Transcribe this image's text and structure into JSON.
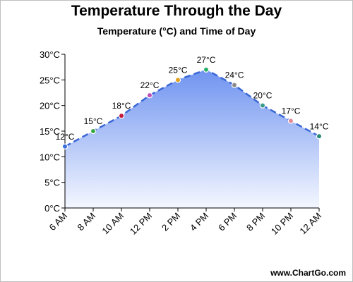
{
  "chart_data": {
    "type": "area",
    "title": "Temperature Through the Day",
    "subtitle": "Temperature (°C) and Time of Day",
    "xlabel": "",
    "ylabel": "",
    "categories": [
      "6 AM",
      "8 AM",
      "10 AM",
      "12 PM",
      "2 PM",
      "4 PM",
      "6 PM",
      "8 PM",
      "10 PM",
      "12 AM"
    ],
    "values": [
      12,
      15,
      18,
      22,
      25,
      27,
      24,
      20,
      17,
      14
    ],
    "data_labels": [
      "12°C",
      "15°C",
      "18°C",
      "22°C",
      "25°C",
      "27°C",
      "24°C",
      "20°C",
      "17°C",
      "14°C"
    ],
    "ylim": [
      0,
      30
    ],
    "yticks": [
      0,
      5,
      10,
      15,
      20,
      25,
      30
    ],
    "ytick_labels": [
      "0°C",
      "5°C",
      "10°C",
      "15°C",
      "20°C",
      "25°C",
      "30°C"
    ],
    "grid": false,
    "legend": "none",
    "line_style": "dashed",
    "colors": {
      "line": "#3a67d6",
      "fill_top": "#6f93f0",
      "fill_bottom": "#f4f7ff",
      "axis": "#000000",
      "markers": [
        "#3a6fd8",
        "#3aa84a",
        "#c21a3a",
        "#c04fb8",
        "#e0a020",
        "#2db16e",
        "#8a8a8a",
        "#3a9a8a",
        "#e08a9a",
        "#2a8a7a"
      ]
    }
  },
  "footer": {
    "watermark": "www.ChartGo.com"
  }
}
